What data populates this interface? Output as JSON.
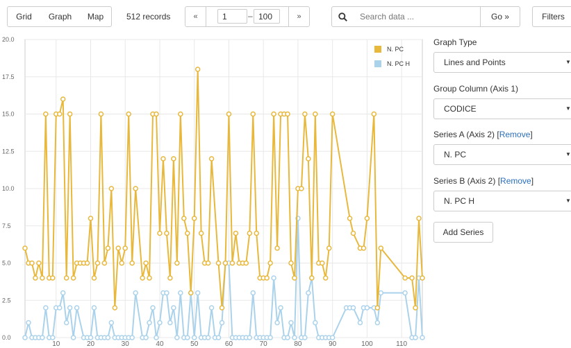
{
  "toolbar": {
    "grid_label": "Grid",
    "graph_label": "Graph",
    "map_label": "Map",
    "records": "512 records",
    "pager": {
      "prev": "«",
      "from": "1",
      "dash": "–",
      "to": "100",
      "next": "»"
    },
    "search_placeholder": "Search data ...",
    "go_label": "Go »",
    "filters_label": "Filters"
  },
  "panel": {
    "graph_type_label": "Graph Type",
    "graph_type_value": "Lines and Points",
    "group_column_label": "Group Column (Axis 1)",
    "group_column_value": "CODICE",
    "series_a_label": "Series A (Axis 2) ",
    "series_a_value": "N. PC",
    "series_b_label": "Series B (Axis 2) ",
    "series_b_value": "N. PC H",
    "remove_label": "Remove",
    "bracket_open": "[",
    "bracket_close": "]",
    "add_series_label": "Add Series"
  },
  "colors": {
    "series_a": "#e8b83c",
    "series_b": "#abd2eb",
    "grid": "#e8e8e8"
  },
  "chart_data": {
    "type": "line",
    "x": [
      1,
      2,
      3,
      4,
      5,
      6,
      7,
      8,
      9,
      10,
      11,
      12,
      13,
      14,
      15,
      16,
      17,
      18,
      19,
      20,
      21,
      22,
      23,
      24,
      25,
      26,
      27,
      28,
      29,
      30,
      31,
      32,
      33,
      34,
      35,
      36,
      37,
      38,
      39,
      40,
      41,
      42,
      43,
      44,
      45,
      46,
      47,
      48,
      49,
      50,
      51,
      52,
      53,
      54,
      55,
      56,
      57,
      58,
      59,
      60,
      61,
      62,
      63,
      64,
      65,
      66,
      67,
      68,
      69,
      70,
      71,
      72,
      73,
      74,
      75,
      76,
      77,
      78,
      79,
      80,
      81,
      82,
      83,
      84,
      85,
      86,
      87,
      88,
      89,
      90,
      91,
      92,
      93,
      94,
      95,
      96,
      97,
      98,
      99,
      100,
      101,
      102,
      103,
      104,
      105,
      106,
      107,
      108,
      109,
      110,
      111,
      112,
      113,
      114,
      115,
      116
    ],
    "series": [
      {
        "name": "N. PC",
        "values": [
          6,
          5,
          5,
          4,
          5,
          4,
          15,
          4,
          4,
          15,
          15,
          16,
          4,
          15,
          4,
          5,
          5,
          5,
          5,
          8,
          4,
          5,
          15,
          5,
          6,
          10,
          2,
          6,
          5,
          6,
          15,
          5,
          10,
          null,
          4,
          5,
          4,
          15,
          15,
          7,
          12,
          7,
          4,
          12,
          5,
          15,
          8,
          7,
          3,
          8,
          18,
          7,
          5,
          5,
          12,
          null,
          5,
          2,
          5,
          15,
          5,
          7,
          5,
          5,
          5,
          7,
          15,
          7,
          4,
          4,
          4,
          5,
          15,
          6,
          15,
          15,
          15,
          5,
          4,
          10,
          10,
          15,
          12,
          4,
          15,
          5,
          5,
          4,
          6,
          15,
          null,
          null,
          null,
          null,
          8,
          7,
          null,
          6,
          6,
          8,
          null,
          15,
          2,
          6,
          null,
          null,
          null,
          null,
          null,
          null,
          4,
          null,
          4,
          2,
          8,
          4
        ],
        "labels_visible": false
      },
      {
        "name": "N. PC H",
        "values": [
          0,
          1,
          0,
          0,
          0,
          0,
          2,
          0,
          0,
          2,
          2,
          3,
          1,
          2,
          0,
          2,
          null,
          0,
          0,
          0,
          2,
          0,
          0,
          0,
          0,
          1,
          0,
          0,
          0,
          0,
          0,
          0,
          3,
          null,
          0,
          0,
          1,
          2,
          0,
          1,
          3,
          3,
          1,
          2,
          0,
          3,
          0,
          0,
          3,
          0,
          3,
          0,
          0,
          0,
          2,
          0,
          0,
          1,
          5,
          5,
          0,
          0,
          0,
          0,
          0,
          0,
          3,
          0,
          0,
          0,
          0,
          0,
          4,
          1,
          2,
          0,
          0,
          1,
          0,
          8,
          0,
          0,
          3,
          4,
          1,
          0,
          0,
          0,
          0,
          0,
          null,
          null,
          null,
          2,
          2,
          2,
          null,
          1,
          2,
          2,
          null,
          2,
          1,
          3,
          null,
          null,
          null,
          null,
          null,
          null,
          3,
          null,
          0,
          0,
          4,
          0
        ]
      }
    ],
    "xticks": [
      10,
      20,
      30,
      40,
      50,
      60,
      70,
      80,
      90,
      100,
      110
    ],
    "yticks": [
      "0.0",
      "2.5",
      "5.0",
      "7.5",
      "10.0",
      "12.5",
      "15.0",
      "17.5",
      "20.0"
    ],
    "ylim": [
      0,
      20
    ],
    "xlim": [
      1,
      116
    ],
    "grid": true,
    "legend_position": "top-right"
  }
}
